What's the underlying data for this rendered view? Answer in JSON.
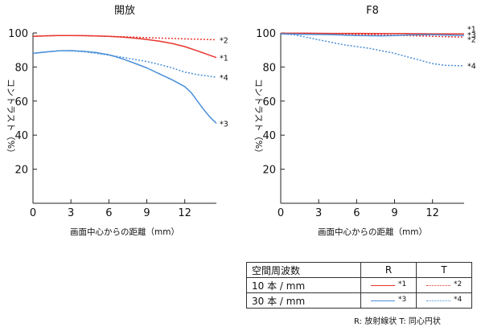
{
  "chart_data": [
    {
      "type": "line",
      "title": "開放",
      "xlabel": "画面中心からの距離（mm）",
      "ylabel": "コントラスト（%）",
      "xlim": [
        0,
        14.5
      ],
      "ylim": [
        0,
        100
      ],
      "xticks": [
        "0",
        "3",
        "6",
        "9",
        "12"
      ],
      "xtick_values": [
        0,
        3,
        6,
        9,
        12
      ],
      "yticks": [
        "20",
        "40",
        "60",
        "80",
        "100"
      ],
      "ytick_values": [
        20,
        40,
        60,
        80,
        100
      ],
      "grid": false,
      "series": [
        {
          "name": "*1",
          "color": "#e8352d",
          "dash": "solid",
          "x": [
            0,
            1,
            2,
            3,
            4,
            5,
            6,
            7,
            8,
            9,
            10,
            11,
            12,
            13,
            14.5
          ],
          "y": [
            98,
            98.3,
            98.5,
            98.5,
            98.4,
            98.2,
            98,
            97.6,
            97,
            96.2,
            95.2,
            93.8,
            92,
            89.5,
            85.5
          ]
        },
        {
          "name": "*2",
          "color": "#e8352d",
          "dash": "dotted",
          "x": [
            0,
            1,
            2,
            3,
            4,
            5,
            6,
            7,
            8,
            9,
            10,
            11,
            12,
            13,
            14.5
          ],
          "y": [
            98,
            98.3,
            98.5,
            98.5,
            98.4,
            98.2,
            98,
            97.8,
            97.5,
            97.2,
            97,
            96.8,
            96.5,
            96.3,
            96
          ]
        },
        {
          "name": "*3",
          "color": "#4a90d9",
          "dash": "solid",
          "x": [
            0,
            1,
            2,
            3,
            4,
            5,
            6,
            7,
            8,
            9,
            10,
            11,
            12,
            12.5,
            13,
            13.5,
            14,
            14.5
          ],
          "y": [
            88,
            88.8,
            89.5,
            89.6,
            89.2,
            88.5,
            87.2,
            85,
            82.3,
            79.5,
            76,
            72.5,
            68.5,
            65,
            60,
            55,
            50.5,
            47
          ]
        },
        {
          "name": "*4",
          "color": "#4a90d9",
          "dash": "dotted",
          "x": [
            0,
            1,
            2,
            3,
            4,
            5,
            6,
            7,
            8,
            9,
            10,
            11,
            12,
            13,
            14.5
          ],
          "y": [
            88,
            88.8,
            89.5,
            89.5,
            89,
            88,
            87,
            85.8,
            84.5,
            83.2,
            81.5,
            79.5,
            77,
            75.5,
            74
          ]
        }
      ],
      "series_labels": [
        {
          "text": "*2",
          "y": 96
        },
        {
          "text": "*1",
          "y": 85.5
        },
        {
          "text": "*4",
          "y": 74
        },
        {
          "text": "*3",
          "y": 47
        }
      ]
    },
    {
      "type": "line",
      "title": "F8",
      "xlabel": "画面中心からの距離（mm）",
      "ylabel": "コントラスト（%）",
      "xlim": [
        0,
        14.5
      ],
      "ylim": [
        0,
        100
      ],
      "xticks": [
        "0",
        "3",
        "6",
        "9",
        "12"
      ],
      "xtick_values": [
        0,
        3,
        6,
        9,
        12
      ],
      "yticks": [
        "20",
        "40",
        "60",
        "80",
        "100"
      ],
      "ytick_values": [
        20,
        40,
        60,
        80,
        100
      ],
      "grid": false,
      "series": [
        {
          "name": "*1",
          "color": "#e8352d",
          "dash": "solid",
          "x": [
            0,
            2,
            4,
            6,
            8,
            10,
            12,
            14.5
          ],
          "y": [
            99.8,
            99.8,
            99.7,
            99.7,
            99.6,
            99.6,
            99.5,
            99.4
          ]
        },
        {
          "name": "*2",
          "color": "#e8352d",
          "dash": "dotted",
          "x": [
            0,
            2,
            4,
            6,
            8,
            10,
            12,
            14.5
          ],
          "y": [
            99.8,
            99.8,
            99.5,
            99.2,
            98.8,
            98.5,
            98,
            97.5
          ]
        },
        {
          "name": "*3",
          "color": "#4a90d9",
          "dash": "solid",
          "x": [
            0,
            2,
            4,
            6,
            8,
            9,
            10,
            12,
            14.5
          ],
          "y": [
            99.5,
            99.2,
            99,
            98.5,
            98.3,
            98.5,
            98.8,
            99,
            98.5
          ]
        },
        {
          "name": "*4",
          "color": "#4a90d9",
          "dash": "dotted",
          "x": [
            0,
            1,
            2,
            3,
            4,
            5,
            6,
            7,
            8,
            9,
            10,
            11,
            12,
            13,
            14,
            14.5
          ],
          "y": [
            99.5,
            99,
            97.5,
            96,
            94.5,
            93,
            92,
            91,
            89.5,
            88,
            86,
            84,
            82,
            81,
            80.8,
            80.8
          ]
        }
      ],
      "series_labels": [
        {
          "text": "*1",
          "y": 102.5
        },
        {
          "text": "*3",
          "y": 99
        },
        {
          "text": "*2",
          "y": 96.5
        },
        {
          "text": "*4",
          "y": 80.8
        }
      ]
    }
  ],
  "legend": {
    "header": "空間周波数",
    "col_r": "R",
    "col_t": "T",
    "rows": [
      {
        "label": "10 本 / mm",
        "r": {
          "num": "*1",
          "color": "#e8352d",
          "dash": "solid"
        },
        "t": {
          "num": "*2",
          "color": "#e8352d",
          "dash": "dotted"
        }
      },
      {
        "label": "30 本 / mm",
        "r": {
          "num": "*3",
          "color": "#4a90d9",
          "dash": "solid"
        },
        "t": {
          "num": "*4",
          "color": "#4a90d9",
          "dash": "dotted"
        }
      }
    ]
  },
  "footnote": "R: 放射線状  T: 同心円状"
}
